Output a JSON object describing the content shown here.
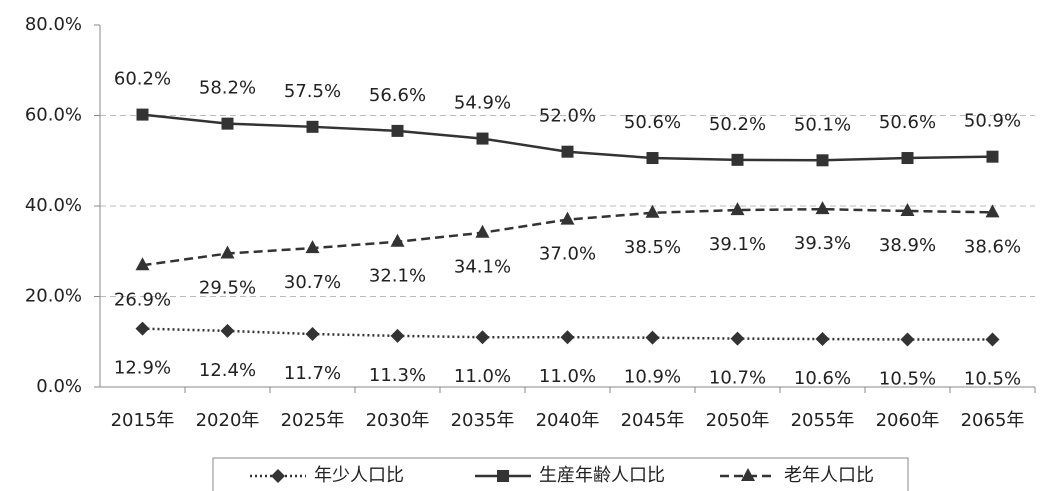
{
  "chart_data": {
    "type": "line",
    "categories": [
      "2015年",
      "2020年",
      "2025年",
      "2030年",
      "2035年",
      "2040年",
      "2045年",
      "2050年",
      "2055年",
      "2060年",
      "2065年"
    ],
    "series": [
      {
        "name": "年少人口比",
        "color": "#333333",
        "line_style": "dotted",
        "marker": "diamond",
        "values": [
          12.9,
          12.4,
          11.7,
          11.3,
          11.0,
          11.0,
          10.9,
          10.7,
          10.6,
          10.5,
          10.5
        ],
        "value_labels": [
          "12.9%",
          "12.4%",
          "11.7%",
          "11.3%",
          "11.0%",
          "11.0%",
          "10.9%",
          "10.7%",
          "10.6%",
          "10.5%",
          "10.5%"
        ]
      },
      {
        "name": "生産年齢人口比",
        "color": "#333333",
        "line_style": "solid",
        "marker": "square",
        "values": [
          60.2,
          58.2,
          57.5,
          56.6,
          54.9,
          52.0,
          50.6,
          50.2,
          50.1,
          50.6,
          50.9
        ],
        "value_labels": [
          "60.2%",
          "58.2%",
          "57.5%",
          "56.6%",
          "54.9%",
          "52.0%",
          "50.6%",
          "50.2%",
          "50.1%",
          "50.6%",
          "50.9%"
        ]
      },
      {
        "name": "老年人口比",
        "color": "#333333",
        "line_style": "dashed",
        "marker": "triangle",
        "values": [
          26.9,
          29.5,
          30.7,
          32.1,
          34.1,
          37.0,
          38.5,
          39.1,
          39.3,
          38.9,
          38.6
        ],
        "value_labels": [
          "26.9%",
          "29.5%",
          "30.7%",
          "32.1%",
          "34.1%",
          "37.0%",
          "38.5%",
          "39.1%",
          "39.3%",
          "38.9%",
          "38.6%"
        ]
      }
    ],
    "ylim": [
      0,
      80
    ],
    "yticks": [
      {
        "value": 0,
        "label": "0.0%"
      },
      {
        "value": 20,
        "label": "20.0%"
      },
      {
        "value": 40,
        "label": "40.0%"
      },
      {
        "value": 60,
        "label": "60.0%"
      },
      {
        "value": 80,
        "label": "80.0%"
      }
    ],
    "grid": true,
    "legend": "bottom"
  }
}
